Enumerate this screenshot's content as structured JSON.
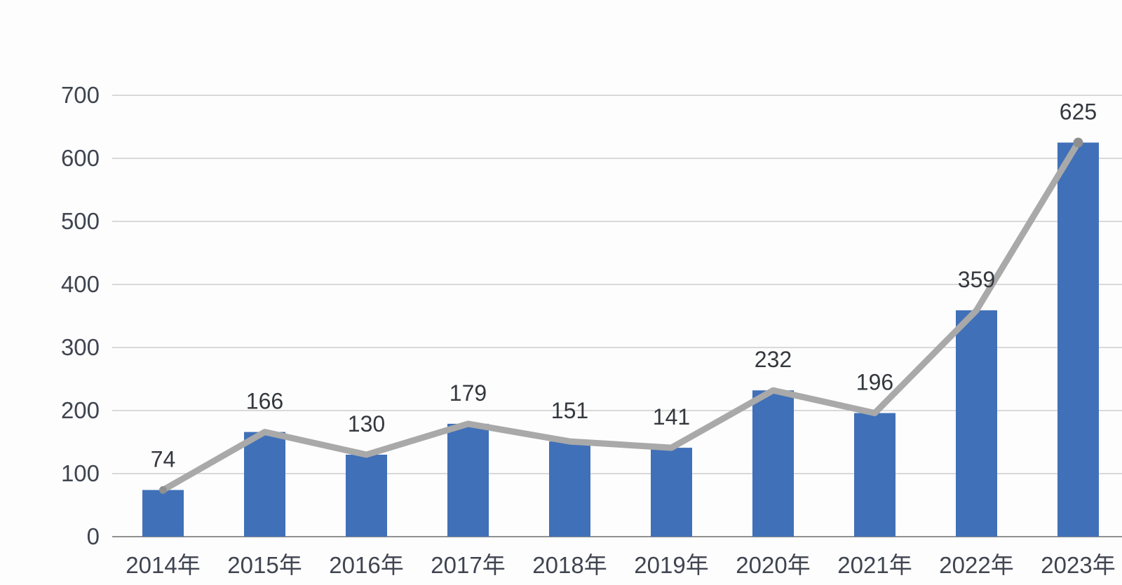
{
  "chart_data": {
    "type": "bar",
    "subtype": "bar-with-line-overlay",
    "title": "",
    "xlabel": "",
    "ylabel": "",
    "categories": [
      "2014年",
      "2015年",
      "2016年",
      "2017年",
      "2018年",
      "2019年",
      "2020年",
      "2021年",
      "2022年",
      "2023年"
    ],
    "series": [
      {
        "type": "bar",
        "values": [
          74,
          166,
          130,
          179,
          151,
          141,
          232,
          196,
          359,
          625
        ]
      },
      {
        "type": "line",
        "values": [
          74,
          166,
          130,
          179,
          151,
          141,
          232,
          196,
          359,
          625
        ]
      }
    ],
    "data_labels": [
      "74",
      "166",
      "130",
      "179",
      "151",
      "141",
      "232",
      "196",
      "359",
      "625"
    ],
    "ylim": [
      0,
      700
    ],
    "yticks": [
      "0",
      "100",
      "200",
      "300",
      "400",
      "500",
      "600",
      "700"
    ],
    "grid": "horizontal",
    "legend": "none"
  },
  "colors": {
    "bar": "#4070b8",
    "line": "#a9a9a9",
    "line_end_marker": "#8f8f8f",
    "gridline": "#c4c4c4",
    "axis_line": "#909090",
    "tick_text": "#3f4450",
    "data_label_text": "#34383e",
    "background": "#fdfdfd"
  }
}
